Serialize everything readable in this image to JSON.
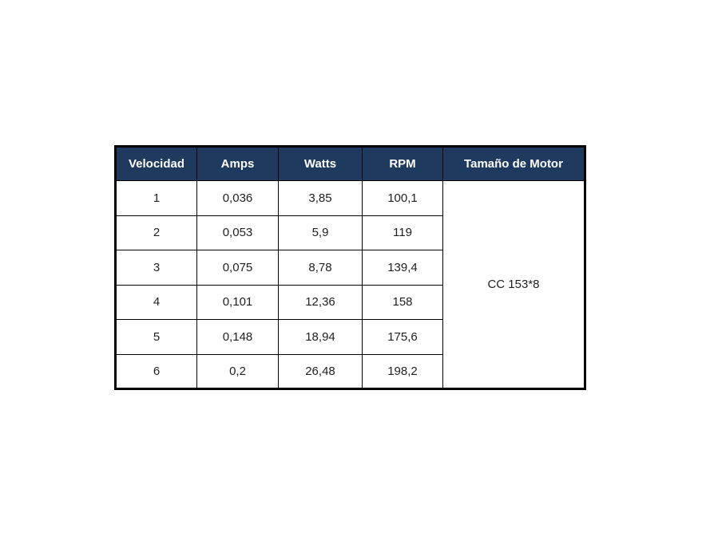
{
  "colors": {
    "header_bg": "#1f3a5f",
    "header_text": "#ffffff",
    "border": "#000000",
    "body_text": "#1f1f1f",
    "page_bg": "#ffffff"
  },
  "table": {
    "headers": [
      {
        "label": "Velocidad"
      },
      {
        "label": "Amps"
      },
      {
        "label": "Watts"
      },
      {
        "label": "RPM"
      },
      {
        "label": "Tamaño de Motor"
      }
    ],
    "rows": [
      {
        "cells": [
          "1",
          "0,036",
          "3,85",
          "100,1"
        ]
      },
      {
        "cells": [
          "2",
          "0,053",
          "5,9",
          "119"
        ]
      },
      {
        "cells": [
          "3",
          "0,075",
          "8,78",
          "139,4"
        ]
      },
      {
        "cells": [
          "4",
          "0,101",
          "12,36",
          "158"
        ]
      },
      {
        "cells": [
          "5",
          "0,148",
          "18,94",
          "175,6"
        ]
      },
      {
        "cells": [
          "6",
          "0,2",
          "26,48",
          "198,2"
        ]
      }
    ],
    "merged_cell": {
      "label": "CC 153*8"
    }
  },
  "chart_data": {
    "type": "table",
    "title": "",
    "columns": [
      "Velocidad",
      "Amps",
      "Watts",
      "RPM",
      "Tamaño de Motor"
    ],
    "velocidad": [
      1,
      2,
      3,
      4,
      5,
      6
    ],
    "amps": [
      0.036,
      0.053,
      0.075,
      0.101,
      0.148,
      0.2
    ],
    "watts": [
      3.85,
      5.9,
      8.78,
      12.36,
      18.94,
      26.48
    ],
    "rpm": [
      100.1,
      119,
      139.4,
      158,
      175.6,
      198.2
    ],
    "motor_size": "CC 153*8",
    "decimal_separator": ","
  }
}
